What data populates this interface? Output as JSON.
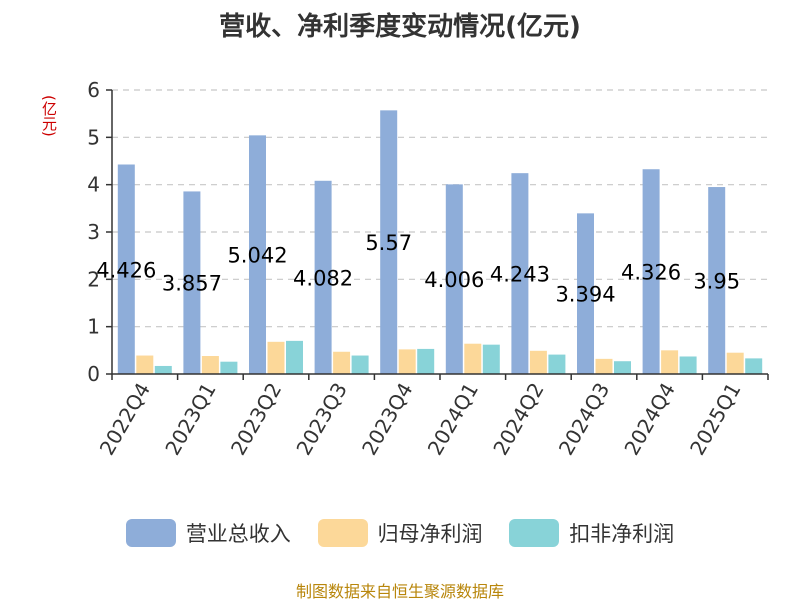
{
  "title": "营收、净利季度变动情况(亿元)",
  "unit_label": "(亿元)",
  "source": "制图数据来自恒生聚源数据库",
  "chart_data": {
    "type": "bar",
    "categories": [
      "2022Q4",
      "2023Q1",
      "2023Q2",
      "2023Q3",
      "2023Q4",
      "2024Q1",
      "2024Q2",
      "2024Q3",
      "2024Q4",
      "2025Q1"
    ],
    "series": [
      {
        "name": "营业总收入",
        "color": "#8eadd9",
        "values": [
          4.426,
          3.857,
          5.042,
          4.082,
          5.57,
          4.006,
          4.243,
          3.394,
          4.326,
          3.95
        ],
        "labels": [
          "4.426",
          "3.857",
          "5.042",
          "4.082",
          "5.57",
          "4.006",
          "4.243",
          "3.394",
          "4.326",
          "3.95"
        ]
      },
      {
        "name": "归母净利润",
        "color": "#fcd899",
        "values": [
          0.39,
          0.38,
          0.68,
          0.47,
          0.52,
          0.64,
          0.49,
          0.32,
          0.5,
          0.45
        ]
      },
      {
        "name": "扣非净利润",
        "color": "#88d3d8",
        "values": [
          0.17,
          0.26,
          0.7,
          0.39,
          0.53,
          0.62,
          0.41,
          0.27,
          0.37,
          0.33
        ]
      }
    ],
    "yticks": [
      "0",
      "1",
      "2",
      "3",
      "4",
      "5",
      "6"
    ],
    "ylim": [
      0,
      6
    ],
    "grid": true,
    "legend_position": "bottom"
  }
}
